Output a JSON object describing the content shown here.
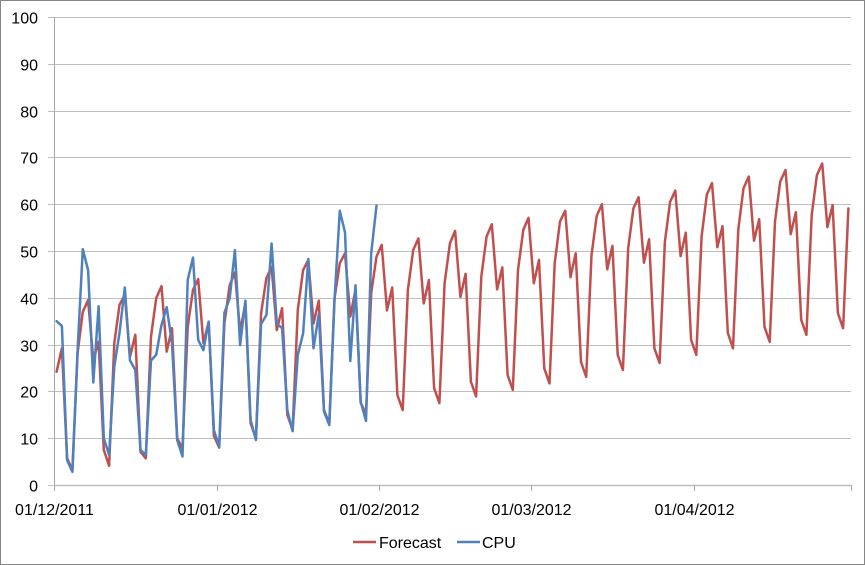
{
  "chart_data": {
    "type": "line",
    "title": "",
    "xlabel": "",
    "ylabel": "",
    "ylim": [
      0,
      100
    ],
    "yticks": [
      0,
      10,
      20,
      30,
      40,
      50,
      60,
      70,
      80,
      90,
      100
    ],
    "xlim": [
      "01/12/2011",
      "01/05/2012"
    ],
    "xtick_labels": [
      "01/12/2011",
      "01/01/2012",
      "01/02/2012",
      "01/03/2012",
      "01/04/2012"
    ],
    "xtick_day_offsets": [
      0,
      31,
      62,
      91,
      122,
      152
    ],
    "x_start": "01/12/2011",
    "x_step": "1 day",
    "grid": true,
    "legend_position": "bottom",
    "legend": [
      "Forecast",
      "CPU"
    ],
    "series": [
      {
        "name": "Forecast",
        "color": "#C0504D",
        "values": [
          24.2,
          29.2,
          5.7,
          3.2,
          28.2,
          37.0,
          39.5,
          26.7,
          30.6,
          7.5,
          4.1,
          30.3,
          38.5,
          40.6,
          27.4,
          32.1,
          7.1,
          5.7,
          31.7,
          39.9,
          42.5,
          28.5,
          33.5,
          10.0,
          7.8,
          33.8,
          41.7,
          44.0,
          30.3,
          34.9,
          10.5,
          8.0,
          34.5,
          42.7,
          45.4,
          32.8,
          38.8,
          13.2,
          10.0,
          36.7,
          44.2,
          46.6,
          33.1,
          37.8,
          15.0,
          11.8,
          37.4,
          45.9,
          48.1,
          34.5,
          39.4,
          16.0,
          13.2,
          39.9,
          47.4,
          49.5,
          36.0,
          41.7,
          17.5,
          15.3,
          41.0,
          48.8,
          51.3,
          37.3,
          42.2,
          19.2,
          16.0,
          41.7,
          50.2,
          52.7,
          38.8,
          43.8,
          20.7,
          17.5,
          43.1,
          51.6,
          54.3,
          40.2,
          45.1,
          22.1,
          18.9,
          44.5,
          53.1,
          55.7,
          41.8,
          46.5,
          23.5,
          20.3,
          45.9,
          54.5,
          57.1,
          43.1,
          48.1,
          24.9,
          21.7,
          47.4,
          56.3,
          58.6,
          44.4,
          49.5,
          26.3,
          23.1,
          49.1,
          57.5,
          60.0,
          46.1,
          51.1,
          27.8,
          24.6,
          50.6,
          59.1,
          61.5,
          47.5,
          52.5,
          29.2,
          26.1,
          52.0,
          60.5,
          62.9,
          48.9,
          53.9,
          31.0,
          27.8,
          53.1,
          62.0,
          64.5,
          50.8,
          55.3,
          32.5,
          29.2,
          54.6,
          63.4,
          65.9,
          52.2,
          56.8,
          33.8,
          30.6,
          56.3,
          64.8,
          67.3,
          53.6,
          58.3,
          35.3,
          32.1,
          57.7,
          66.2,
          68.7,
          55.1,
          59.8,
          36.7,
          33.5,
          59.1
        ]
      },
      {
        "name": "CPU",
        "color": "#4F81BD",
        "values": [
          35.0,
          34.0,
          5.3,
          2.8,
          28.8,
          50.4,
          45.9,
          21.9,
          38.2,
          10.0,
          6.4,
          25.3,
          32.5,
          42.2,
          26.6,
          24.6,
          7.5,
          6.4,
          26.6,
          27.8,
          34.2,
          38.0,
          30.3,
          9.6,
          6.1,
          43.8,
          48.6,
          31.0,
          28.8,
          34.9,
          11.7,
          8.2,
          36.8,
          39.9,
          50.2,
          29.9,
          39.4,
          13.9,
          9.6,
          34.4,
          36.3,
          51.6,
          34.5,
          33.5,
          16.0,
          11.5,
          27.8,
          32.4,
          48.3,
          29.2,
          36.5,
          15.7,
          12.8,
          39.5,
          58.6,
          54.0,
          26.5,
          42.7,
          17.8,
          13.7,
          49.5,
          59.7
        ]
      }
    ]
  },
  "legend": {
    "items": [
      {
        "label": "Forecast",
        "color": "#C0504D"
      },
      {
        "label": "CPU",
        "color": "#4F81BD"
      }
    ]
  }
}
